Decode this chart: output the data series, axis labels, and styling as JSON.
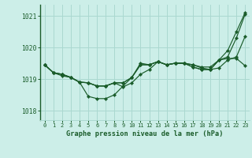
{
  "title": "Graphe pression niveau de la mer (hPa)",
  "background_color": "#cceee8",
  "grid_color": "#aad8d0",
  "line_color": "#1a5c2a",
  "ylim": [
    1017.7,
    1021.35
  ],
  "xlim": [
    -0.5,
    23.5
  ],
  "yticks": [
    1018,
    1019,
    1020,
    1021
  ],
  "xticks": [
    0,
    1,
    2,
    3,
    4,
    5,
    6,
    7,
    8,
    9,
    10,
    11,
    12,
    13,
    14,
    15,
    16,
    17,
    18,
    19,
    20,
    21,
    22,
    23
  ],
  "series": [
    [
      1019.45,
      1019.2,
      1019.15,
      1019.05,
      1018.9,
      1018.45,
      1018.38,
      1018.38,
      1018.5,
      1018.78,
      1019.05,
      1019.5,
      1019.45,
      1019.55,
      1019.45,
      1019.5,
      1019.5,
      1019.45,
      1019.38,
      1019.38,
      1019.6,
      1019.9,
      1020.5,
      1021.1
    ],
    [
      1019.45,
      1019.2,
      1019.15,
      1019.05,
      1018.9,
      1018.88,
      1018.78,
      1018.78,
      1018.88,
      1018.88,
      1019.05,
      1019.45,
      1019.45,
      1019.55,
      1019.45,
      1019.5,
      1019.5,
      1019.38,
      1019.3,
      1019.3,
      1019.6,
      1019.65,
      1019.65,
      1019.42
    ],
    [
      1019.45,
      1019.2,
      1019.15,
      1019.05,
      1018.9,
      1018.88,
      1018.78,
      1018.78,
      1018.88,
      1018.88,
      1019.05,
      1019.45,
      1019.45,
      1019.55,
      1019.45,
      1019.5,
      1019.5,
      1019.38,
      1019.3,
      1019.3,
      1019.6,
      1019.7,
      1020.3,
      1021.05
    ],
    [
      1019.45,
      1019.2,
      1019.1,
      1019.05,
      1018.9,
      1018.88,
      1018.78,
      1018.78,
      1018.88,
      1018.75,
      1018.88,
      1019.15,
      1019.3,
      1019.55,
      1019.45,
      1019.5,
      1019.5,
      1019.45,
      1019.35,
      1019.3,
      1019.35,
      1019.6,
      1019.7,
      1020.35
    ]
  ],
  "marker_size": 2.2,
  "line_width": 0.85
}
